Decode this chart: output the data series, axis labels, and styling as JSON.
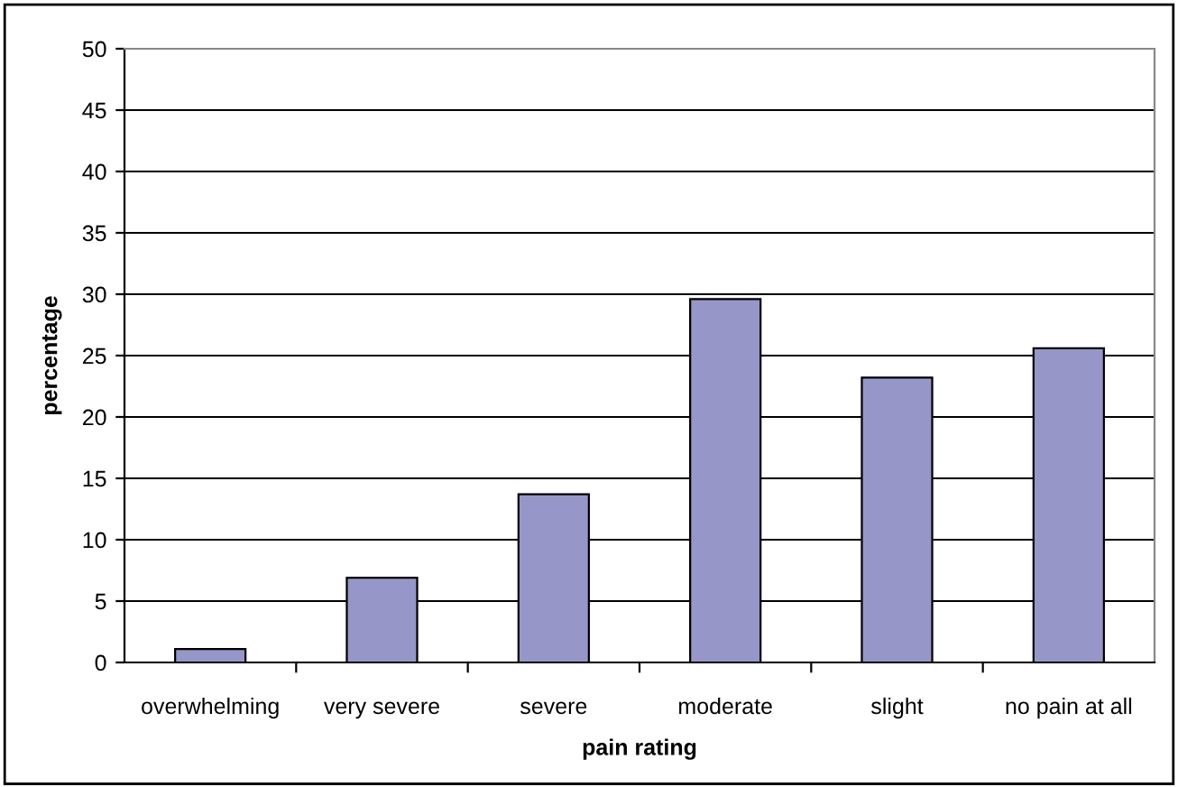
{
  "chart_data": {
    "type": "bar",
    "xlabel": "pain rating",
    "ylabel": "percentage",
    "categories": [
      "overwhelming",
      "very severe",
      "severe",
      "moderate",
      "slight",
      "no pain at all"
    ],
    "values": [
      1.1,
      6.9,
      13.7,
      29.6,
      23.2,
      25.6
    ],
    "color": "#9696c8",
    "ylim": [
      0,
      50
    ],
    "yticks": [
      0,
      5,
      10,
      15,
      20,
      25,
      30,
      35,
      40,
      45,
      50
    ],
    "grid": "y",
    "legend": false
  }
}
